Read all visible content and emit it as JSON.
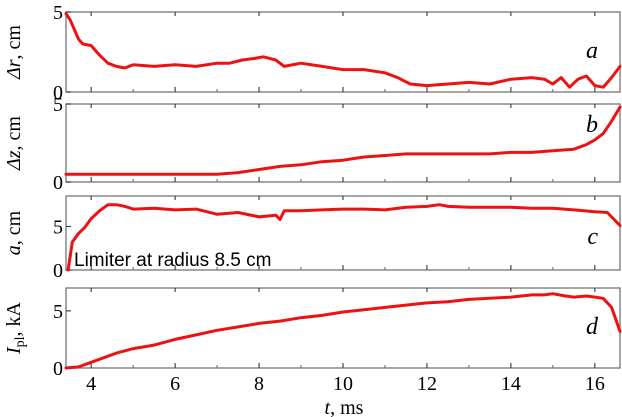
{
  "chart_data": {
    "type": "line",
    "xlabel": "t, ms",
    "xlim": [
      3.4,
      16.6
    ],
    "xticks": [
      4,
      6,
      8,
      10,
      12,
      14,
      16
    ],
    "line_color": "#ee1111",
    "panels": [
      {
        "id": "a",
        "letter": "a",
        "ylabel": "Δr, cm",
        "ylim": [
          0,
          5
        ],
        "yticks": [
          0,
          5
        ],
        "x": [
          3.4,
          3.5,
          3.6,
          3.7,
          3.8,
          4.0,
          4.2,
          4.4,
          4.6,
          4.8,
          5.0,
          5.5,
          6.0,
          6.5,
          7.0,
          7.3,
          7.6,
          7.9,
          8.1,
          8.4,
          8.6,
          9.0,
          9.5,
          10.0,
          10.5,
          11.0,
          11.3,
          11.6,
          12.0,
          12.5,
          13.0,
          13.5,
          14.0,
          14.5,
          14.8,
          15.0,
          15.2,
          15.4,
          15.6,
          15.8,
          16.0,
          16.2,
          16.4,
          16.6
        ],
        "values": [
          4.9,
          4.5,
          3.9,
          3.3,
          3.0,
          2.9,
          2.3,
          1.8,
          1.6,
          1.5,
          1.7,
          1.6,
          1.7,
          1.6,
          1.8,
          1.8,
          2.0,
          2.1,
          2.2,
          2.0,
          1.6,
          1.8,
          1.6,
          1.4,
          1.4,
          1.2,
          0.9,
          0.5,
          0.4,
          0.5,
          0.6,
          0.5,
          0.8,
          0.9,
          0.8,
          0.5,
          0.9,
          0.3,
          0.8,
          1.0,
          0.4,
          0.3,
          0.9,
          1.6
        ]
      },
      {
        "id": "b",
        "letter": "b",
        "ylabel": "Δz, cm",
        "ylim": [
          0,
          5
        ],
        "yticks": [
          0,
          5
        ],
        "x": [
          3.4,
          4.0,
          5.0,
          6.0,
          7.0,
          7.5,
          8.0,
          8.5,
          9.0,
          9.5,
          10.0,
          10.5,
          11.0,
          11.5,
          12.0,
          12.5,
          13.0,
          13.5,
          14.0,
          14.5,
          15.0,
          15.5,
          15.8,
          16.0,
          16.2,
          16.4,
          16.6
        ],
        "values": [
          0.5,
          0.5,
          0.5,
          0.5,
          0.5,
          0.6,
          0.8,
          1.0,
          1.1,
          1.3,
          1.4,
          1.6,
          1.7,
          1.8,
          1.8,
          1.8,
          1.8,
          1.8,
          1.9,
          1.9,
          2.0,
          2.1,
          2.4,
          2.7,
          3.1,
          3.9,
          4.8
        ]
      },
      {
        "id": "c",
        "letter": "c",
        "ylabel": "a, cm",
        "ylim": [
          0,
          8.5
        ],
        "yticks": [
          0,
          5
        ],
        "annotation": "Limiter at radius 8.5 cm",
        "x": [
          3.45,
          3.55,
          3.7,
          3.85,
          4.0,
          4.2,
          4.4,
          4.6,
          4.8,
          5.0,
          5.5,
          6.0,
          6.5,
          7.0,
          7.5,
          8.0,
          8.4,
          8.5,
          8.6,
          9.0,
          9.5,
          10.0,
          10.5,
          11.0,
          11.5,
          12.0,
          12.3,
          12.5,
          13.0,
          13.5,
          14.0,
          14.5,
          15.0,
          15.5,
          16.0,
          16.3,
          16.6
        ],
        "values": [
          0.0,
          3.2,
          4.2,
          4.9,
          5.9,
          6.8,
          7.5,
          7.5,
          7.3,
          7.0,
          7.1,
          6.9,
          7.0,
          6.4,
          6.6,
          6.1,
          6.3,
          5.8,
          6.8,
          6.8,
          6.9,
          7.0,
          7.0,
          6.9,
          7.2,
          7.3,
          7.5,
          7.3,
          7.2,
          7.2,
          7.2,
          7.1,
          7.1,
          6.9,
          6.7,
          6.6,
          5.1
        ]
      },
      {
        "id": "d",
        "letter": "d",
        "ylabel": "I_pl, kA",
        "ylim": [
          0,
          7
        ],
        "yticks": [
          0,
          5
        ],
        "x": [
          3.4,
          3.7,
          4.0,
          4.3,
          4.6,
          5.0,
          5.5,
          6.0,
          6.5,
          7.0,
          7.5,
          8.0,
          8.5,
          9.0,
          9.5,
          10.0,
          10.5,
          11.0,
          11.5,
          12.0,
          12.5,
          13.0,
          13.5,
          14.0,
          14.5,
          14.8,
          15.0,
          15.3,
          15.5,
          15.8,
          16.0,
          16.2,
          16.4,
          16.6
        ],
        "values": [
          0.0,
          0.1,
          0.5,
          0.9,
          1.3,
          1.7,
          2.0,
          2.5,
          2.9,
          3.3,
          3.6,
          3.9,
          4.1,
          4.4,
          4.6,
          4.9,
          5.1,
          5.3,
          5.5,
          5.7,
          5.8,
          6.0,
          6.1,
          6.2,
          6.4,
          6.4,
          6.5,
          6.3,
          6.2,
          6.3,
          6.2,
          6.1,
          5.3,
          3.2
        ]
      }
    ]
  }
}
